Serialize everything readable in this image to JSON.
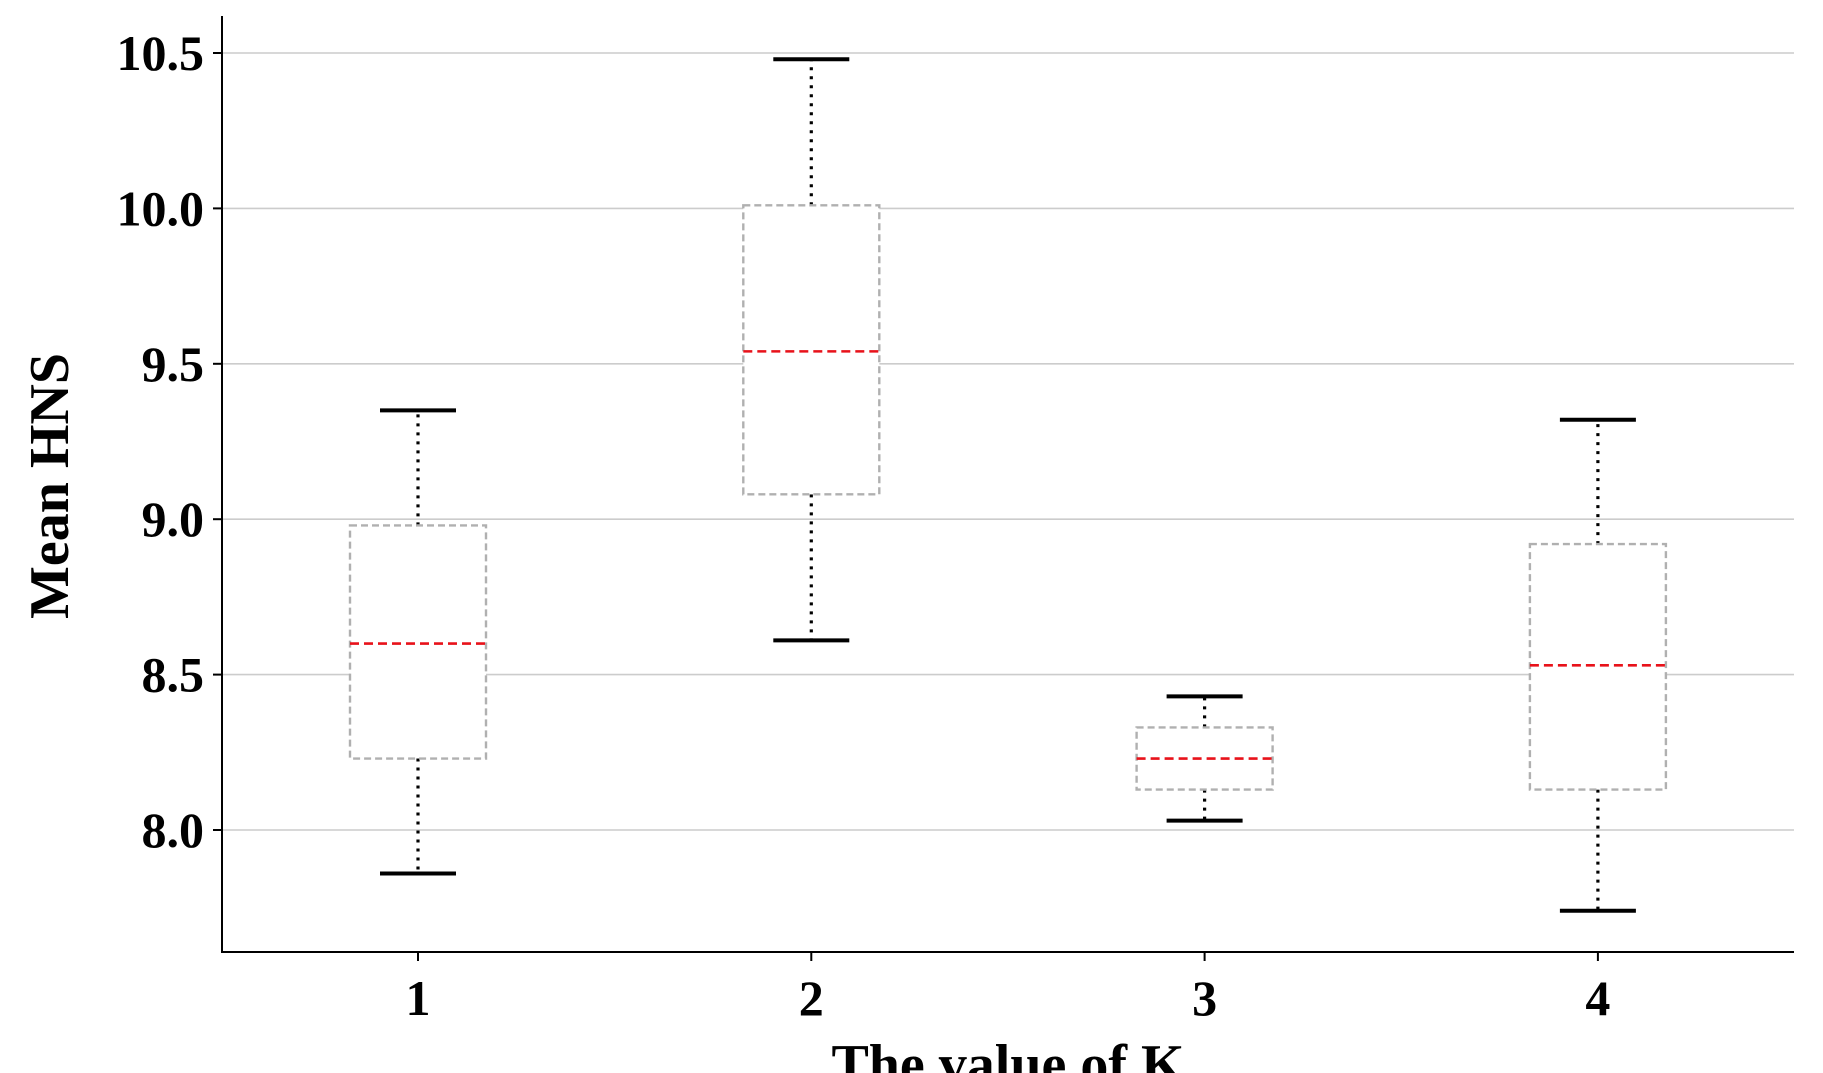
{
  "chart_data": {
    "type": "boxplot",
    "title": "",
    "xlabel": "The value of K",
    "ylabel": "Mean HNS",
    "categories": [
      "1",
      "2",
      "3",
      "4"
    ],
    "yticks": [
      "8.0",
      "8.5",
      "9.0",
      "9.5",
      "10.0",
      "10.5"
    ],
    "ylim": [
      7.6,
      10.62
    ],
    "grid": "horizontal",
    "boxes": [
      {
        "category": "1",
        "whisker_low": 7.86,
        "q1": 8.23,
        "median": 8.6,
        "q3": 8.98,
        "whisker_high": 9.35
      },
      {
        "category": "2",
        "whisker_low": 8.61,
        "q1": 9.08,
        "median": 9.54,
        "q3": 10.01,
        "whisker_high": 10.48
      },
      {
        "category": "3",
        "whisker_low": 8.03,
        "q1": 8.13,
        "median": 8.23,
        "q3": 8.33,
        "whisker_high": 8.43
      },
      {
        "category": "4",
        "whisker_low": 7.74,
        "q1": 8.13,
        "median": 8.53,
        "q3": 8.92,
        "whisker_high": 9.32
      }
    ],
    "colors": {
      "box_edge": "#b0b0b0",
      "median": "#e8121a",
      "whisker": "#000000",
      "grid": "#cccccc",
      "axis": "#000000"
    }
  }
}
